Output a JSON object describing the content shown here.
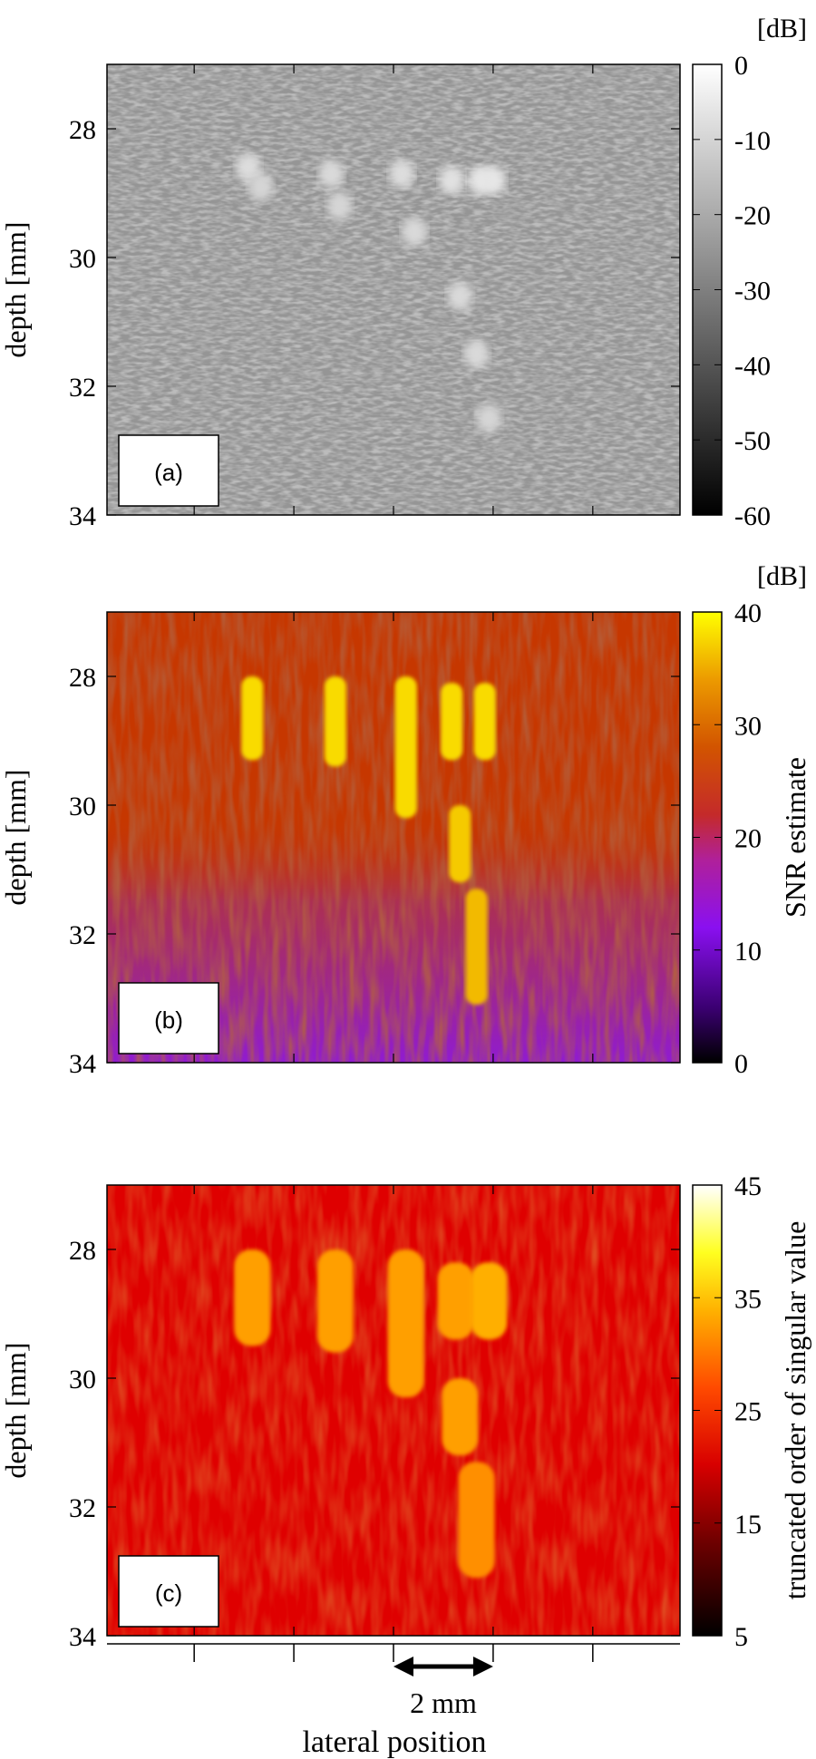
{
  "panels": [
    {
      "id": "a",
      "label": "(a)",
      "ylabel": "depth [mm]",
      "yticks": [
        28,
        30,
        32,
        34
      ],
      "ylim": [
        27,
        34
      ],
      "colorbar": {
        "colormap": "gray",
        "unit": "[dB]",
        "title": "",
        "range": [
          -60,
          0
        ],
        "ticks": [
          "0",
          "-10",
          "-20",
          "-30",
          "-40",
          "-50",
          "-60"
        ]
      }
    },
    {
      "id": "b",
      "label": "(b)",
      "ylabel": "depth [mm]",
      "yticks": [
        28,
        30,
        32,
        34
      ],
      "ylim": [
        27,
        34
      ],
      "colorbar": {
        "colormap": "gnuplot",
        "unit": "[dB]",
        "title": "SNR estimate",
        "range": [
          0,
          40
        ],
        "ticks": [
          "40",
          "30",
          "20",
          "10",
          "0"
        ]
      }
    },
    {
      "id": "c",
      "label": "(c)",
      "ylabel": "depth [mm]",
      "yticks": [
        28,
        30,
        32,
        34
      ],
      "ylim": [
        27,
        34
      ],
      "colorbar": {
        "colormap": "hot",
        "unit": "",
        "title": "truncated order of singular value",
        "range": [
          5,
          45
        ],
        "ticks": [
          "45",
          "35",
          "25",
          "15",
          "5"
        ]
      }
    }
  ],
  "xaxis": {
    "label": "lateral position",
    "scale_bar": "2 mm"
  },
  "chart_data": [
    {
      "type": "heatmap",
      "title": "(a)",
      "ylabel": "depth [mm]",
      "xlabel": "lateral position",
      "ylim": [
        27,
        34
      ],
      "colorbar_range_dB": [
        -60,
        0
      ],
      "background_dB": -25,
      "targets": [
        {
          "lateral_mm": -3.5,
          "depth_mm": 28.6,
          "value": -8
        },
        {
          "lateral_mm": -3.2,
          "depth_mm": 28.9,
          "value": -10
        },
        {
          "lateral_mm": -1.5,
          "depth_mm": 28.7,
          "value": -9
        },
        {
          "lateral_mm": -1.3,
          "depth_mm": 29.2,
          "value": -10
        },
        {
          "lateral_mm": 0.2,
          "depth_mm": 28.7,
          "value": -8
        },
        {
          "lateral_mm": 0.5,
          "depth_mm": 29.6,
          "value": -9
        },
        {
          "lateral_mm": 1.4,
          "depth_mm": 28.8,
          "value": -7
        },
        {
          "lateral_mm": 2.1,
          "depth_mm": 28.8,
          "value": -6
        },
        {
          "lateral_mm": 2.4,
          "depth_mm": 28.8,
          "value": -6
        },
        {
          "lateral_mm": 1.6,
          "depth_mm": 30.6,
          "value": -9
        },
        {
          "lateral_mm": 2.0,
          "depth_mm": 31.5,
          "value": -9
        },
        {
          "lateral_mm": 2.3,
          "depth_mm": 32.5,
          "value": -10
        }
      ]
    },
    {
      "type": "heatmap",
      "title": "(b)",
      "ylabel": "depth [mm]",
      "xlabel": "lateral position",
      "ylim": [
        27,
        34
      ],
      "colorbar_range_dB": [
        0,
        40
      ],
      "background_upper": 24,
      "background_lower": 14,
      "targets": [
        {
          "lateral_mm": -3.4,
          "depth_min": 28.0,
          "depth_max": 29.3,
          "value": 38
        },
        {
          "lateral_mm": -1.4,
          "depth_min": 28.0,
          "depth_max": 29.4,
          "value": 38
        },
        {
          "lateral_mm": 0.3,
          "depth_min": 28.0,
          "depth_max": 30.2,
          "value": 38
        },
        {
          "lateral_mm": 1.4,
          "depth_min": 28.1,
          "depth_max": 29.3,
          "value": 38
        },
        {
          "lateral_mm": 2.2,
          "depth_min": 28.1,
          "depth_max": 29.3,
          "value": 38
        },
        {
          "lateral_mm": 1.6,
          "depth_min": 30.0,
          "depth_max": 31.2,
          "value": 37
        },
        {
          "lateral_mm": 2.0,
          "depth_min": 31.3,
          "depth_max": 33.1,
          "value": 36
        }
      ]
    },
    {
      "type": "heatmap",
      "title": "(c)",
      "ylabel": "depth [mm]",
      "xlabel": "lateral position",
      "ylim": [
        27,
        34
      ],
      "colorbar_range": [
        5,
        45
      ],
      "background_value": 19,
      "targets": [
        {
          "lateral_mm": -3.4,
          "depth_min": 28.0,
          "depth_max": 29.5,
          "value": 31
        },
        {
          "lateral_mm": -1.4,
          "depth_min": 28.0,
          "depth_max": 29.6,
          "value": 31
        },
        {
          "lateral_mm": 0.3,
          "depth_min": 28.0,
          "depth_max": 30.3,
          "value": 31
        },
        {
          "lateral_mm": 1.5,
          "depth_min": 28.2,
          "depth_max": 29.4,
          "value": 31
        },
        {
          "lateral_mm": 2.3,
          "depth_min": 28.2,
          "depth_max": 29.4,
          "value": 32
        },
        {
          "lateral_mm": 1.6,
          "depth_min": 30.0,
          "depth_max": 31.2,
          "value": 31
        },
        {
          "lateral_mm": 2.0,
          "depth_min": 31.3,
          "depth_max": 33.1,
          "value": 30
        }
      ]
    }
  ]
}
